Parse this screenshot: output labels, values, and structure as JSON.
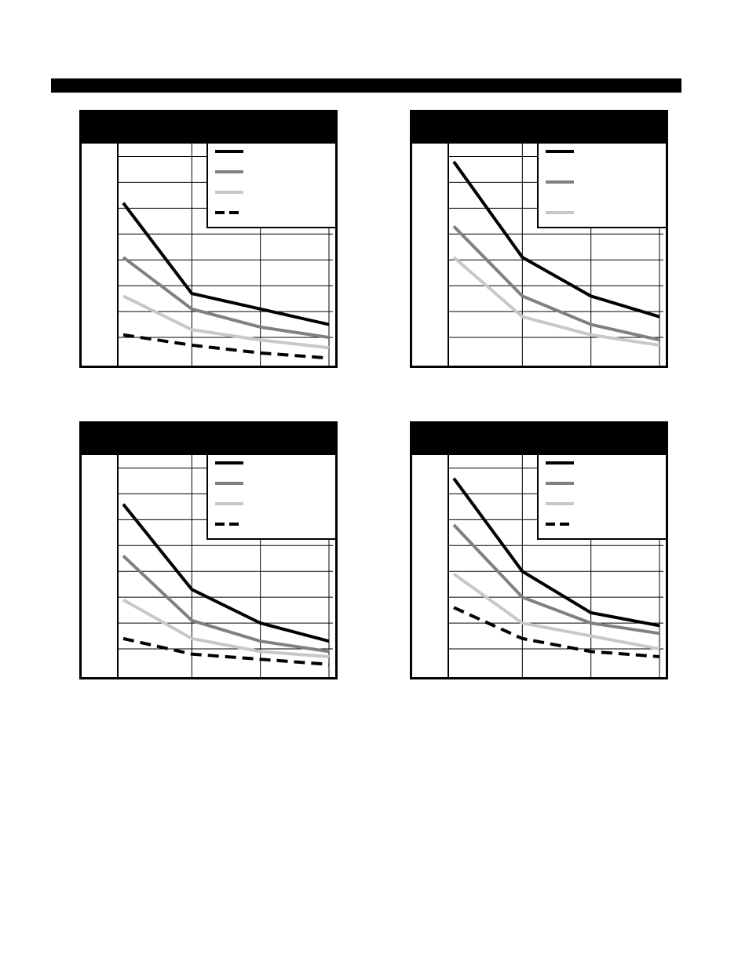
{
  "chart_data": [
    {
      "type": "line",
      "title": "",
      "xlabel": "",
      "ylabel": "",
      "x": [
        1,
        2,
        3,
        4
      ],
      "ylim": [
        0,
        8.5
      ],
      "grid": true,
      "legend": "top-right",
      "series": [
        {
          "values": [
            6.2,
            2.7,
            2.1,
            1.5
          ],
          "color": "#000000",
          "dash": false
        },
        {
          "values": [
            4.1,
            2.1,
            1.4,
            1.0
          ],
          "color": "#808080",
          "dash": false
        },
        {
          "values": [
            2.6,
            1.3,
            0.9,
            0.6
          ],
          "color": "#c8c8c8",
          "dash": false
        },
        {
          "values": [
            1.1,
            0.7,
            0.4,
            0.2
          ],
          "color": "#000000",
          "dash": true
        }
      ]
    },
    {
      "type": "line",
      "title": "",
      "xlabel": "",
      "ylabel": "",
      "x": [
        1,
        2,
        3,
        4
      ],
      "ylim": [
        0,
        8.5
      ],
      "grid": true,
      "legend": "top-right",
      "series": [
        {
          "values": [
            7.8,
            4.1,
            2.6,
            1.8
          ],
          "color": "#000000",
          "dash": false
        },
        {
          "values": [
            5.3,
            2.6,
            1.5,
            0.9
          ],
          "color": "#808080",
          "dash": false
        },
        {
          "values": [
            4.1,
            1.8,
            1.1,
            0.7
          ],
          "color": "#c8c8c8",
          "dash": false
        }
      ]
    },
    {
      "type": "line",
      "title": "",
      "xlabel": "",
      "ylabel": "",
      "x": [
        1,
        2,
        3,
        4
      ],
      "ylim": [
        0,
        8.5
      ],
      "grid": true,
      "legend": "top-right",
      "series": [
        {
          "values": [
            6.6,
            3.3,
            2.0,
            1.3
          ],
          "color": "#000000",
          "dash": false
        },
        {
          "values": [
            4.6,
            2.1,
            1.3,
            0.9
          ],
          "color": "#808080",
          "dash": false
        },
        {
          "values": [
            2.9,
            1.4,
            0.9,
            0.7
          ],
          "color": "#c8c8c8",
          "dash": false
        },
        {
          "values": [
            1.4,
            0.8,
            0.6,
            0.4
          ],
          "color": "#000000",
          "dash": true
        }
      ]
    },
    {
      "type": "line",
      "title": "",
      "xlabel": "",
      "ylabel": "",
      "x": [
        1,
        2,
        3,
        4
      ],
      "ylim": [
        0,
        8.5
      ],
      "grid": true,
      "legend": "top-right",
      "series": [
        {
          "values": [
            7.6,
            4.0,
            2.4,
            1.9
          ],
          "color": "#000000",
          "dash": false
        },
        {
          "values": [
            5.8,
            3.0,
            2.0,
            1.6
          ],
          "color": "#808080",
          "dash": false
        },
        {
          "values": [
            3.9,
            2.0,
            1.5,
            1.0
          ],
          "color": "#c8c8c8",
          "dash": false
        },
        {
          "values": [
            2.6,
            1.4,
            0.9,
            0.7
          ],
          "color": "#000000",
          "dash": true
        }
      ]
    }
  ]
}
